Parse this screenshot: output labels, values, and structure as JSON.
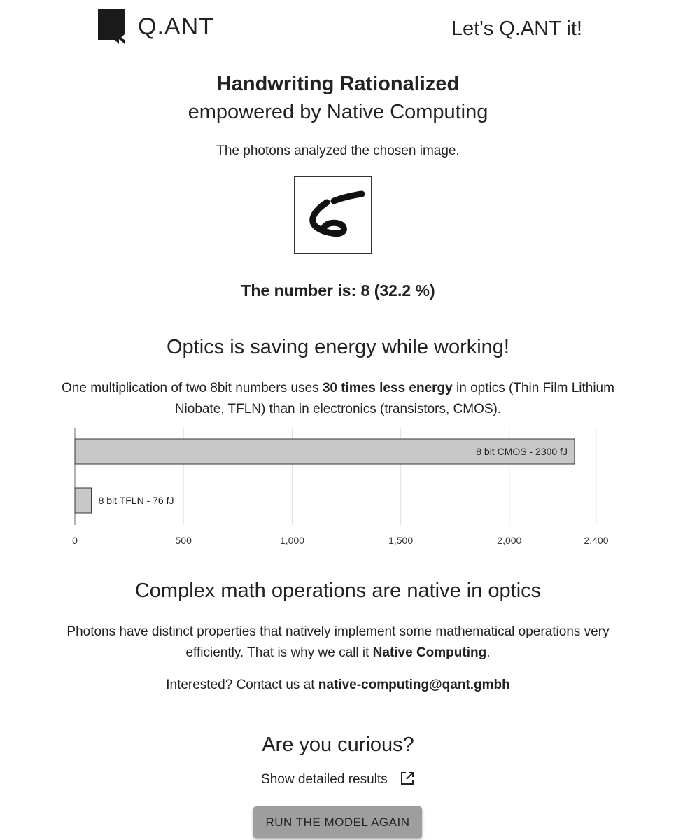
{
  "header": {
    "logo_text": "Q.ANT",
    "tagline": "Let's Q.ANT it!"
  },
  "hero": {
    "title": "Handwriting Rationalized",
    "subtitle": "empowered by Native Computing",
    "intro": "The photons analyzed the chosen image.",
    "digit_image_icon": "handwritten-digit-image"
  },
  "result": {
    "text": "The number is: 8 (32.2 %)"
  },
  "energy": {
    "title": "Optics is saving energy while working!",
    "text_before": "One multiplication of two 8bit numbers uses ",
    "text_bold": "30 times less energy",
    "text_after": " in optics (Thin Film Lithium Niobate, TFLN) than in electronics (transistors, CMOS)."
  },
  "chart_data": {
    "type": "bar",
    "orientation": "horizontal",
    "categories": [
      "8 bit CMOS - 2300 fJ",
      "8 bit TFLN - 76 fJ"
    ],
    "values": [
      2300,
      76
    ],
    "xlim": [
      0,
      2400
    ],
    "xticks": [
      "0",
      "500",
      "1,000",
      "1,500",
      "2,000",
      "2,400"
    ],
    "xtick_values": [
      0,
      500,
      1000,
      1500,
      2000,
      2400
    ],
    "grid": true,
    "bar_color": "#c8c8c8"
  },
  "native": {
    "title": "Complex math operations are native in optics",
    "text_before": "Photons have distinct properties that natively implement some mathematical operations very efficiently. That is why we call it ",
    "text_bold": "Native Computing",
    "text_after": "."
  },
  "contact": {
    "prefix": "Interested? Contact us at ",
    "email": "native-computing@qant.gmbh"
  },
  "curious": {
    "title": "Are you curious?",
    "details_label": "Show detailed results",
    "details_icon": "external-link-icon",
    "run_button_label": "RUN THE MODEL AGAIN"
  }
}
